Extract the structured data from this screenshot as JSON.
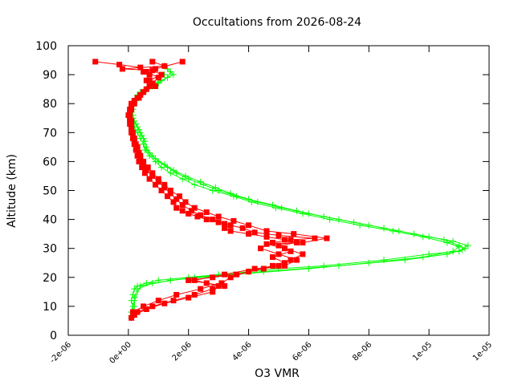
{
  "chart_data": {
    "type": "line",
    "title": "Occultations from 2026-08-24",
    "xlabel": "O3 VMR",
    "ylabel": "Altitude (km)",
    "xlim": [
      -2e-06,
      1.2e-05
    ],
    "ylim": [
      0,
      100
    ],
    "x_ticks": [
      -2e-06,
      0,
      2e-06,
      4e-06,
      6e-06,
      8e-06,
      1e-05,
      1.2e-05
    ],
    "x_tick_labels": [
      "-2e-06",
      "0e+00",
      "2e-06",
      "4e-06",
      "6e-06",
      "8e-06",
      "1e-05",
      "1e-05"
    ],
    "y_ticks": [
      0,
      10,
      20,
      30,
      40,
      50,
      60,
      70,
      80,
      90,
      100
    ],
    "y_tick_labels": [
      "0",
      "10",
      "20",
      "30",
      "40",
      "50",
      "60",
      "70",
      "80",
      "90",
      "100"
    ],
    "grid": false,
    "colors": {
      "green_series": "#00ff00",
      "red_series": "#ff0000"
    },
    "series": [
      {
        "color": "#00ff00",
        "marker": "plus",
        "points": [
          [
            1e-07,
            6
          ],
          [
            1e-07,
            8
          ],
          [
            1.5e-07,
            10
          ],
          [
            1e-07,
            12
          ],
          [
            1.5e-07,
            14
          ],
          [
            2e-07,
            16
          ],
          [
            3e-07,
            17
          ],
          [
            6e-07,
            18
          ],
          [
            1e-06,
            19
          ],
          [
            2e-06,
            20
          ],
          [
            3e-06,
            21
          ],
          [
            4e-06,
            22
          ],
          [
            5e-06,
            23
          ],
          [
            6.5e-06,
            24
          ],
          [
            8.5e-06,
            26
          ],
          [
            1e-05,
            28
          ],
          [
            1.1e-05,
            29
          ],
          [
            1.12e-05,
            30
          ],
          [
            1.1e-05,
            31
          ],
          [
            1.05e-05,
            33
          ],
          [
            9.5e-06,
            35
          ],
          [
            8.5e-06,
            37
          ],
          [
            7.5e-06,
            39
          ],
          [
            6.5e-06,
            41
          ],
          [
            5.6e-06,
            43
          ],
          [
            4.8e-06,
            45
          ],
          [
            4e-06,
            47
          ],
          [
            3.4e-06,
            49
          ],
          [
            2.9e-06,
            51
          ],
          [
            2.4e-06,
            53
          ],
          [
            1.9e-06,
            55
          ],
          [
            1.5e-06,
            57
          ],
          [
            1.2e-06,
            59
          ],
          [
            9e-07,
            61
          ],
          [
            7e-07,
            63
          ],
          [
            6e-07,
            65
          ],
          [
            5.5e-07,
            67
          ],
          [
            4.5e-07,
            69
          ],
          [
            3.5e-07,
            71
          ],
          [
            2.5e-07,
            73
          ],
          [
            1.5e-07,
            75
          ],
          [
            1e-07,
            77
          ],
          [
            1e-07,
            79
          ],
          [
            2e-07,
            81
          ],
          [
            3e-07,
            83
          ],
          [
            6e-07,
            85
          ],
          [
            1e-06,
            87
          ],
          [
            1.3e-06,
            89
          ],
          [
            1.4e-06,
            91
          ],
          [
            1.2e-06,
            93
          ]
        ]
      },
      {
        "color": "#00ff00",
        "marker": "plus",
        "points": [
          [
            1.5e-07,
            7
          ],
          [
            2e-07,
            10
          ],
          [
            2e-07,
            13
          ],
          [
            3e-07,
            16
          ],
          [
            8e-07,
            18
          ],
          [
            2.2e-06,
            20
          ],
          [
            4.5e-06,
            22
          ],
          [
            7e-06,
            24
          ],
          [
            9.2e-06,
            26
          ],
          [
            1.06e-05,
            28
          ],
          [
            1.11e-05,
            29.5
          ],
          [
            1.13e-05,
            31
          ],
          [
            1.08e-05,
            32.5
          ],
          [
            1e-05,
            34
          ],
          [
            9e-06,
            36
          ],
          [
            8e-06,
            38
          ],
          [
            7e-06,
            40
          ],
          [
            6e-06,
            42
          ],
          [
            5.1e-06,
            44
          ],
          [
            4.3e-06,
            46
          ],
          [
            3.6e-06,
            48
          ],
          [
            3e-06,
            50
          ],
          [
            2.5e-06,
            52
          ],
          [
            2e-06,
            54
          ],
          [
            1.6e-06,
            56
          ],
          [
            1.3e-06,
            58
          ],
          [
            1e-06,
            60
          ],
          [
            8e-07,
            62
          ],
          [
            6e-07,
            64
          ],
          [
            5e-07,
            66
          ],
          [
            5e-07,
            68
          ],
          [
            4e-07,
            70
          ],
          [
            3e-07,
            72
          ],
          [
            2e-07,
            74
          ],
          [
            1.5e-07,
            76
          ],
          [
            1e-07,
            78
          ],
          [
            1.5e-07,
            80
          ],
          [
            3e-07,
            82
          ],
          [
            5e-07,
            84
          ],
          [
            8e-07,
            86
          ],
          [
            1.1e-06,
            88
          ],
          [
            1.5e-06,
            90
          ],
          [
            1.3e-06,
            92
          ]
        ]
      },
      {
        "color": "#00ff00",
        "marker": "plus",
        "points": [
          [
            1e-07,
            8
          ],
          [
            2e-07,
            12
          ],
          [
            4e-07,
            17
          ],
          [
            1.4e-06,
            19
          ],
          [
            3.5e-06,
            21
          ],
          [
            6e-06,
            23
          ],
          [
            8e-06,
            25
          ],
          [
            9.8e-06,
            27
          ],
          [
            1.08e-05,
            29
          ],
          [
            1.1e-05,
            30.5
          ],
          [
            1.06e-05,
            32
          ],
          [
            9.8e-06,
            34
          ],
          [
            8.8e-06,
            36
          ],
          [
            7.7e-06,
            38
          ],
          [
            6.7e-06,
            40
          ],
          [
            5.8e-06,
            42
          ],
          [
            4.9e-06,
            44
          ],
          [
            4.1e-06,
            46
          ],
          [
            3.5e-06,
            48
          ],
          [
            2.8e-06,
            50
          ],
          [
            2.2e-06,
            52
          ],
          [
            1.8e-06,
            54
          ],
          [
            1.4e-06,
            56
          ],
          [
            1.1e-06,
            58
          ],
          [
            9e-07,
            60
          ],
          [
            7e-07,
            62
          ],
          [
            5.5e-07,
            64
          ],
          [
            5e-07,
            66
          ],
          [
            4e-07,
            68
          ],
          [
            3e-07,
            70
          ],
          [
            2e-07,
            72
          ],
          [
            1e-07,
            75
          ],
          [
            1.5e-07,
            78
          ],
          [
            2.5e-07,
            81
          ],
          [
            4e-07,
            84
          ],
          [
            9e-07,
            87
          ],
          [
            1.2e-06,
            90
          ]
        ]
      },
      {
        "color": "#ff0000",
        "marker": "square",
        "points": [
          [
            1e-07,
            6
          ],
          [
            3e-07,
            8
          ],
          [
            8e-07,
            10
          ],
          [
            1.5e-06,
            12
          ],
          [
            2.2e-06,
            14
          ],
          [
            2.8e-06,
            16
          ],
          [
            3.2e-06,
            17
          ],
          [
            2.6e-06,
            18
          ],
          [
            2e-06,
            19
          ],
          [
            2.8e-06,
            20
          ],
          [
            3.6e-06,
            21
          ],
          [
            4e-06,
            22
          ],
          [
            4.5e-06,
            23
          ],
          [
            5e-06,
            24
          ],
          [
            5.2e-06,
            25
          ],
          [
            4.8e-06,
            27
          ],
          [
            5.4e-06,
            29
          ],
          [
            5e-06,
            31
          ],
          [
            5.6e-06,
            32
          ],
          [
            5.2e-06,
            33
          ],
          [
            4.6e-06,
            34
          ],
          [
            4e-06,
            35
          ],
          [
            3.4e-06,
            36
          ],
          [
            3.2e-06,
            37
          ],
          [
            3.4e-06,
            38
          ],
          [
            3e-06,
            39
          ],
          [
            2.6e-06,
            40
          ],
          [
            2.3e-06,
            41
          ],
          [
            2e-06,
            42
          ],
          [
            1.8e-06,
            43
          ],
          [
            1.6e-06,
            44
          ],
          [
            1.5e-06,
            46
          ],
          [
            1.3e-06,
            48
          ],
          [
            1.1e-06,
            50
          ],
          [
            9e-07,
            52
          ],
          [
            7e-07,
            54
          ],
          [
            5.5e-07,
            56
          ],
          [
            4.5e-07,
            58
          ],
          [
            3.5e-07,
            60
          ],
          [
            3e-07,
            62
          ],
          [
            2.5e-07,
            64
          ],
          [
            2e-07,
            66
          ],
          [
            1.5e-07,
            68
          ],
          [
            1e-07,
            70
          ],
          [
            1e-07,
            72
          ],
          [
            5e-08,
            74
          ],
          [
            0.0,
            76
          ],
          [
            5e-08,
            78
          ],
          [
            1e-07,
            80
          ],
          [
            3e-07,
            82
          ],
          [
            5e-07,
            84
          ],
          [
            7e-07,
            86
          ],
          [
            6e-07,
            88
          ],
          [
            7e-07,
            90
          ],
          [
            5e-07,
            91
          ],
          [
            9e-07,
            92
          ],
          [
            1.8e-06,
            94.5
          ]
        ]
      },
      {
        "color": "#ff0000",
        "marker": "square",
        "points": [
          [
            2e-07,
            7
          ],
          [
            6e-07,
            9
          ],
          [
            1.2e-06,
            11
          ],
          [
            2e-06,
            13
          ],
          [
            2.8e-06,
            15
          ],
          [
            3e-06,
            17
          ],
          [
            2.2e-06,
            19
          ],
          [
            3.2e-06,
            21
          ],
          [
            4.2e-06,
            23
          ],
          [
            5.2e-06,
            24
          ],
          [
            5.6e-06,
            26
          ],
          [
            5e-06,
            28
          ],
          [
            4.4e-06,
            30
          ],
          [
            4.8e-06,
            32
          ],
          [
            5.4e-06,
            33
          ],
          [
            6.2e-06,
            33.5
          ],
          [
            5e-06,
            34.5
          ],
          [
            4.2e-06,
            35.5
          ],
          [
            3.8e-06,
            37
          ],
          [
            3.2e-06,
            38.5
          ],
          [
            2.8e-06,
            40
          ],
          [
            2.4e-06,
            41.5
          ],
          [
            2.1e-06,
            43
          ],
          [
            1.8e-06,
            45
          ],
          [
            1.6e-06,
            47
          ],
          [
            1.4e-06,
            49
          ],
          [
            1.2e-06,
            51
          ],
          [
            1e-06,
            53
          ],
          [
            8e-07,
            55
          ],
          [
            6e-07,
            57
          ],
          [
            5e-07,
            59
          ],
          [
            4e-07,
            61
          ],
          [
            3.5e-07,
            63
          ],
          [
            3e-07,
            65
          ],
          [
            2e-07,
            67
          ],
          [
            1.5e-07,
            69
          ],
          [
            1e-07,
            71
          ],
          [
            5e-08,
            73
          ],
          [
            5e-08,
            75
          ],
          [
            5e-08,
            77
          ],
          [
            1e-07,
            79
          ],
          [
            2e-07,
            81
          ],
          [
            4e-07,
            83
          ],
          [
            6e-07,
            85
          ],
          [
            8e-07,
            87
          ],
          [
            1e-06,
            89
          ],
          [
            6e-07,
            91
          ],
          [
            4e-07,
            92.5
          ],
          [
            -3e-07,
            93.5
          ],
          [
            -1.1e-06,
            94.5
          ]
        ]
      },
      {
        "color": "#ff0000",
        "marker": "square",
        "points": [
          [
            1.5e-07,
            8
          ],
          [
            5e-07,
            10
          ],
          [
            1e-06,
            12
          ],
          [
            1.6e-06,
            14
          ],
          [
            2.4e-06,
            16
          ],
          [
            3.1e-06,
            18
          ],
          [
            3.4e-06,
            20
          ],
          [
            4e-06,
            22
          ],
          [
            4.8e-06,
            24
          ],
          [
            5.4e-06,
            26
          ],
          [
            5.8e-06,
            28
          ],
          [
            5.2e-06,
            30
          ],
          [
            4.6e-06,
            31.5
          ],
          [
            5.8e-06,
            32
          ],
          [
            6.6e-06,
            33.5
          ],
          [
            5.5e-06,
            35
          ],
          [
            4.6e-06,
            36
          ],
          [
            4e-06,
            38
          ],
          [
            3.5e-06,
            39.5
          ],
          [
            3e-06,
            41
          ],
          [
            2.6e-06,
            42.5
          ],
          [
            2.2e-06,
            44
          ],
          [
            1.9e-06,
            46
          ],
          [
            1.7e-06,
            48
          ],
          [
            1.4e-06,
            50
          ],
          [
            1.2e-06,
            52
          ],
          [
            1e-06,
            54
          ],
          [
            8e-07,
            56
          ],
          [
            6.5e-07,
            58
          ],
          [
            5e-07,
            60
          ],
          [
            4e-07,
            62
          ],
          [
            3e-07,
            64
          ],
          [
            2.5e-07,
            66
          ],
          [
            2e-07,
            68
          ],
          [
            1.5e-07,
            70
          ],
          [
            1e-07,
            72
          ],
          [
            1e-07,
            74
          ],
          [
            5e-08,
            76
          ],
          [
            1e-07,
            78
          ],
          [
            2e-07,
            80
          ],
          [
            3.5e-07,
            82
          ],
          [
            5e-07,
            84
          ],
          [
            9e-07,
            86
          ],
          [
            7e-07,
            88
          ],
          [
            1.1e-06,
            90
          ],
          [
            8e-07,
            91.5
          ],
          [
            -2e-07,
            92
          ],
          [
            1.2e-06,
            93
          ],
          [
            8e-07,
            94.5
          ]
        ]
      }
    ]
  }
}
